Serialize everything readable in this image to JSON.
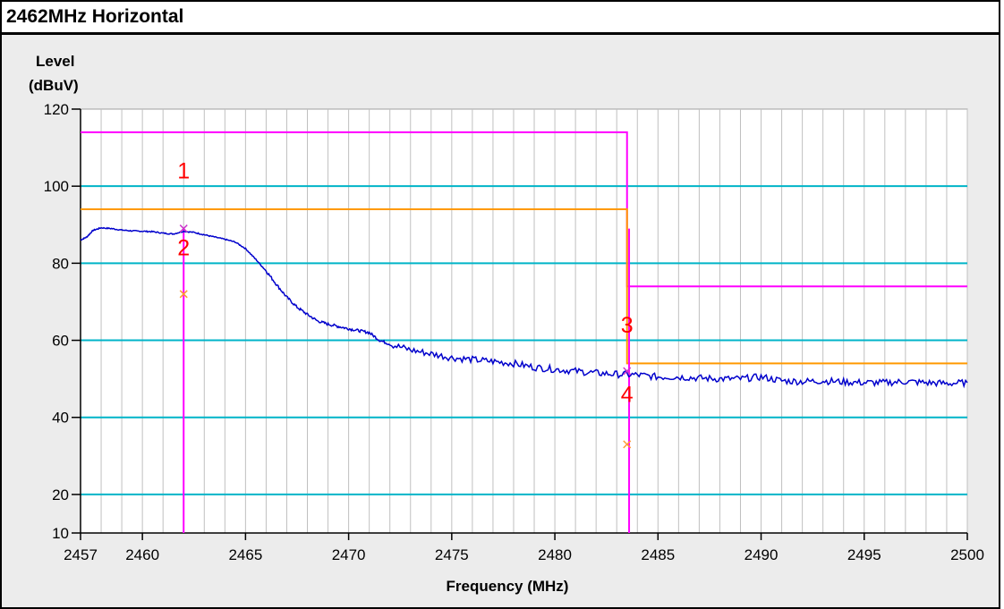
{
  "title": "2462MHz Horizontal",
  "chart_data": {
    "type": "line",
    "ylabel_line1": "Level",
    "ylabel_line2": "(dBuV)",
    "xlabel": "Frequency (MHz)",
    "xlim": [
      2457,
      2500
    ],
    "ylim": [
      10,
      120
    ],
    "x_ticks": [
      {
        "value": 2457,
        "label": "2457"
      },
      {
        "value": 2460,
        "label": "2460"
      },
      {
        "value": 2465,
        "label": "2465"
      },
      {
        "value": 2470,
        "label": "2470"
      },
      {
        "value": 2475,
        "label": "2475"
      },
      {
        "value": 2480,
        "label": "2480"
      },
      {
        "value": 2485,
        "label": "2485"
      },
      {
        "value": 2490,
        "label": "2490"
      },
      {
        "value": 2495,
        "label": "2495"
      },
      {
        "value": 2500,
        "label": "2500"
      }
    ],
    "y_ticks": [
      {
        "value": 10,
        "label": "10"
      },
      {
        "value": 20,
        "label": "20"
      },
      {
        "value": 40,
        "label": "40"
      },
      {
        "value": 60,
        "label": "60"
      },
      {
        "value": 80,
        "label": "80"
      },
      {
        "value": 100,
        "label": "100"
      },
      {
        "value": 120,
        "label": "120"
      }
    ],
    "grid": true,
    "colors": {
      "trace": "#0000cc",
      "peak_limit": "#ff00ff",
      "avg_limit": "#ff9900",
      "hgrid": "#00b4c8",
      "vgrid": "#c0c0c0",
      "marker_text": "#ff0000",
      "plot_bg": "#ffffff"
    },
    "trace": {
      "x": [
        2457.0,
        2457.3,
        2457.6,
        2458.0,
        2458.5,
        2459.0,
        2459.5,
        2460.0,
        2460.5,
        2461.0,
        2461.5,
        2462.0,
        2462.5,
        2463.0,
        2463.5,
        2464.0,
        2464.5,
        2465.0,
        2465.5,
        2466.0,
        2466.5,
        2467.0,
        2467.5,
        2468.0,
        2468.5,
        2469.0,
        2469.5,
        2470.0,
        2470.5,
        2471.0,
        2471.5,
        2472.0,
        2473.0,
        2474.0,
        2475.0,
        2476.0,
        2477.0,
        2478.0,
        2479.0,
        2480.0,
        2481.0,
        2482.0,
        2483.0,
        2484.0,
        2485.0,
        2486.0,
        2487.0,
        2488.0,
        2489.0,
        2490.0,
        2491.0,
        2492.0,
        2493.0,
        2494.0,
        2495.0,
        2496.0,
        2497.0,
        2498.0,
        2499.0,
        2500.0
      ],
      "y": [
        86.0,
        86.8,
        88.5,
        89.2,
        89.0,
        88.6,
        88.4,
        88.3,
        88.2,
        87.8,
        87.6,
        88.3,
        88.0,
        87.4,
        86.8,
        86.2,
        85.5,
        83.8,
        81.0,
        78.0,
        74.5,
        71.2,
        68.6,
        66.7,
        65.0,
        64.2,
        63.6,
        63.0,
        62.5,
        62.0,
        60.0,
        59.0,
        57.5,
        56.5,
        55.5,
        55.0,
        54.5,
        54.0,
        53.0,
        52.5,
        52.0,
        51.5,
        51.2,
        51.0,
        50.5,
        50.5,
        50.2,
        50.0,
        50.0,
        50.5,
        49.5,
        49.3,
        49.5,
        49.2,
        49.0,
        49.0,
        49.3,
        49.0,
        48.8,
        49.0
      ]
    },
    "limits": {
      "peak": [
        {
          "x": [
            2457,
            2483.5
          ],
          "y": 114
        },
        {
          "x": [
            2483.5,
            2500
          ],
          "y": 74
        }
      ],
      "average": [
        {
          "x": [
            2457,
            2483.5
          ],
          "y": 94
        },
        {
          "x": [
            2483.5,
            2500
          ],
          "y": 54
        }
      ],
      "step_x": 2483.5
    },
    "marker_lines": [
      2462,
      2483.6
    ],
    "markers": [
      {
        "label": "1",
        "x": 2462.0,
        "y": 89.0,
        "color": "#cc33cc"
      },
      {
        "label": "2",
        "x": 2462.0,
        "y": 72.0,
        "color": "#ff9933"
      },
      {
        "label": "3",
        "x": 2483.5,
        "y": 52.0,
        "color": "#cc33cc"
      },
      {
        "label": "4",
        "x": 2483.5,
        "y": 33.0,
        "color": "#ff9933"
      }
    ]
  }
}
